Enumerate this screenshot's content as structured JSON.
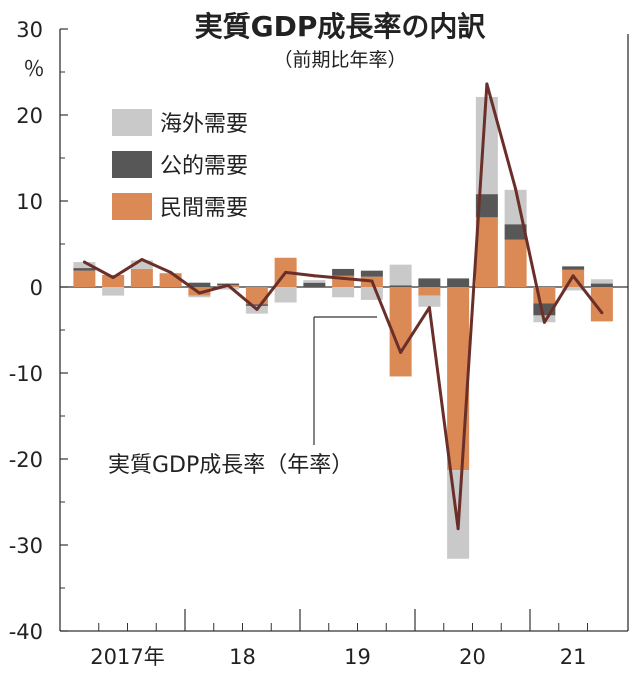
{
  "chart_data": {
    "type": "bar",
    "title": "実質GDP成長率の内訳",
    "subtitle": "（前期比年率）",
    "y_unit": "％",
    "ylim": [
      -40,
      30
    ],
    "yticks": [
      "30",
      "20",
      "10",
      "0",
      "-10",
      "-20",
      "-30",
      "-40"
    ],
    "x_year_labels": [
      "2017年",
      "18",
      "19",
      "20",
      "21"
    ],
    "quarters": [
      "2017Q1",
      "2017Q2",
      "2017Q3",
      "2017Q4",
      "2018Q1",
      "2018Q2",
      "2018Q3",
      "2018Q4",
      "2019Q1",
      "2019Q2",
      "2019Q3",
      "2019Q4",
      "2020Q1",
      "2020Q2",
      "2020Q3",
      "2020Q4",
      "2021Q1",
      "2021Q2",
      "2021Q3"
    ],
    "legend": [
      "海外需要",
      "公的需要",
      "民間需要"
    ],
    "series": [
      {
        "name": "海外需要",
        "color": "#c9c9c9",
        "values": [
          0.7,
          -1.0,
          1.0,
          0.0,
          -0.2,
          -0.3,
          -0.9,
          -1.8,
          0.3,
          -1.2,
          -1.5,
          2.4,
          -1.3,
          -10.3,
          11.3,
          4.0,
          -0.8,
          -0.4,
          0.5
        ]
      },
      {
        "name": "公的需要",
        "color": "#575757",
        "values": [
          0.3,
          0.0,
          0.0,
          0.0,
          0.5,
          0.2,
          -0.2,
          0.0,
          0.5,
          0.8,
          0.7,
          0.2,
          1.0,
          1.0,
          2.7,
          1.8,
          -1.4,
          0.4,
          0.4
        ]
      },
      {
        "name": "民間需要",
        "color": "#dc8a55",
        "values": [
          1.9,
          1.4,
          2.1,
          1.6,
          -1.0,
          0.2,
          -2.0,
          3.4,
          0.0,
          1.3,
          1.2,
          -10.4,
          -1.0,
          -21.3,
          8.1,
          5.5,
          -1.9,
          2.0,
          -4.0
        ]
      }
    ],
    "line": {
      "name": "実質GDP成長率（年率）",
      "color": "#6b2f2a",
      "values": [
        2.9,
        1.1,
        3.2,
        1.7,
        -0.7,
        0.2,
        -2.6,
        1.7,
        1.3,
        1.0,
        0.7,
        -7.6,
        -2.4,
        -28.1,
        23.6,
        11.4,
        -4.1,
        1.3,
        -3.0
      ]
    },
    "line_label": "実質GDP成長率（年率）"
  }
}
